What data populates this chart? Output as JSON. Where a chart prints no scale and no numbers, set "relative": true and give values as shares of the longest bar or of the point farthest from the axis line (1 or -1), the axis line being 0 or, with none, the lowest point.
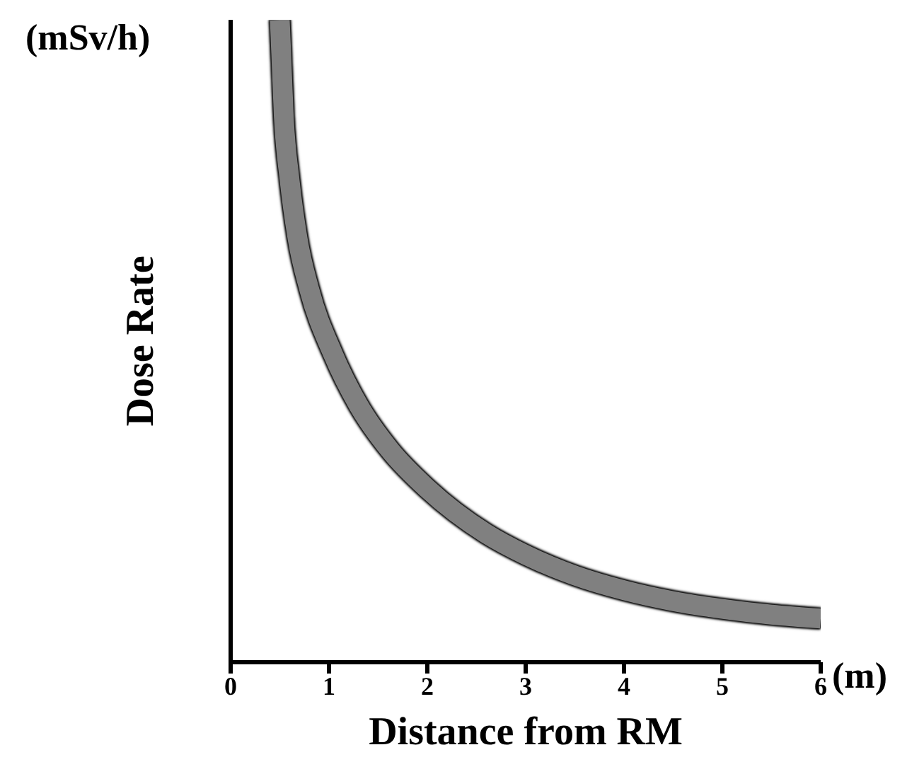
{
  "chart_data": {
    "type": "line",
    "relative": true,
    "xlabel": "Distance from RM",
    "ylabel": "Dose Rate",
    "annotations": [
      "(mSv/h)",
      "(m)"
    ],
    "x": [
      0.5,
      0.54,
      0.6,
      0.68,
      0.8,
      1.04,
      1.3,
      1.62,
      2.0,
      2.6,
      3.0,
      3.5,
      4.0,
      4.5,
      5.0,
      5.5,
      6.0
    ],
    "series": [
      {
        "color": "#808080",
        "values": [
          1.0,
          0.85,
          0.75,
          0.66,
          0.58,
          0.48,
          0.4,
          0.33,
          0.27,
          0.2,
          0.167,
          0.135,
          0.112,
          0.095,
          0.083,
          0.074,
          0.068
        ]
      }
    ],
    "xlim": [
      0,
      6
    ],
    "xticks": [
      0,
      1,
      2,
      3,
      4,
      5,
      6
    ],
    "grid": false,
    "marker": "none",
    "line_style": "solid"
  }
}
